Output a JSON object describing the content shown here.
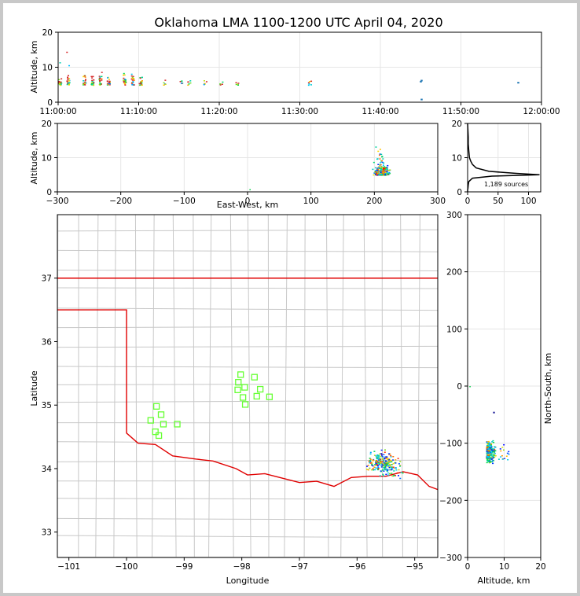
{
  "title": "Oklahoma LMA 1100-1200 UTC April 04, 2020",
  "chart_data": [
    {
      "id": "time_height",
      "type": "scatter",
      "ylabel": "Altitude, km",
      "xlabel": "",
      "xticklabels": [
        "11:00:00",
        "11:10:00",
        "11:20:00",
        "11:30:00",
        "11:40:00",
        "11:50:00",
        "12:00:00"
      ],
      "xlim_minutes": [
        0,
        60
      ],
      "ylim": [
        0,
        20
      ],
      "yticks": [
        0,
        10,
        20
      ],
      "grid": true,
      "color_by": "time (blue early to red late)"
    },
    {
      "id": "ew_height",
      "type": "scatter",
      "xlabel": "East-West, km",
      "ylabel": "Altitude, km",
      "xlim": [
        -300,
        300
      ],
      "xticks": [
        -300,
        -200,
        -100,
        0,
        100,
        200,
        300
      ],
      "ylim": [
        0,
        20
      ],
      "yticks": [
        0,
        10,
        20
      ],
      "grid": true
    },
    {
      "id": "altitude_histogram",
      "type": "line",
      "xlim": [
        0,
        120
      ],
      "xticks": [
        0,
        50,
        100
      ],
      "ylim": [
        0,
        20
      ],
      "yticks": [
        0,
        10,
        20
      ],
      "annotation": "1,189 sources",
      "grid": true
    },
    {
      "id": "plan_view_map",
      "type": "scatter",
      "xlabel": "Longitude",
      "ylabel": "Latitude",
      "xlim": [
        -101.2,
        -94.6
      ],
      "ylim": [
        32.6,
        38.0
      ],
      "xticks": [
        -101,
        -100,
        -99,
        -98,
        -97,
        -96,
        -95
      ],
      "yticks": [
        33,
        34,
        35,
        36,
        37
      ],
      "lma_stations": [
        [
          -98.02,
          35.48
        ],
        [
          -97.78,
          35.44
        ],
        [
          -98.06,
          35.36
        ],
        [
          -97.95,
          35.28
        ],
        [
          -98.07,
          35.24
        ],
        [
          -97.68,
          35.25
        ],
        [
          -97.98,
          35.12
        ],
        [
          -97.74,
          35.14
        ],
        [
          -97.52,
          35.13
        ],
        [
          -97.94,
          35.01
        ],
        [
          -99.48,
          34.98
        ],
        [
          -99.4,
          34.85
        ],
        [
          -99.58,
          34.76
        ],
        [
          -99.36,
          34.7
        ],
        [
          -99.12,
          34.7
        ],
        [
          -99.5,
          34.58
        ],
        [
          -99.44,
          34.52
        ]
      ]
    },
    {
      "id": "ns_height",
      "type": "scatter",
      "xlabel": "Altitude, km",
      "ylabel": "North-South, km",
      "xlim": [
        0,
        20
      ],
      "xticks": [
        0,
        10,
        20
      ],
      "ylim": [
        -300,
        300
      ],
      "yticks": [
        -300,
        -200,
        -100,
        0,
        100,
        200,
        300
      ],
      "grid": true
    }
  ],
  "colors": {
    "state_border": "#e00000",
    "county_lines": "#c8c8c8",
    "station_marker": "#66ff33",
    "grid": "#e6e6e6"
  }
}
